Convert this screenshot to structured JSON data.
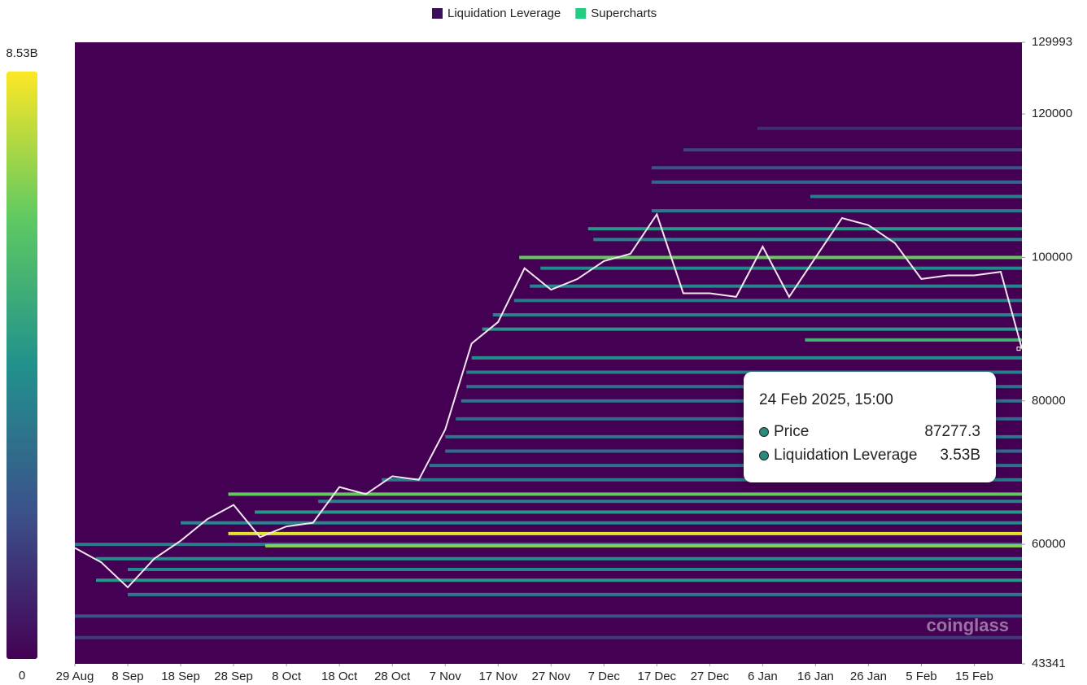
{
  "chart_data": {
    "type": "heatmap",
    "legend": [
      {
        "name": "Liquidation Leverage",
        "color": "#3b0f5a"
      },
      {
        "name": "Supercharts",
        "color": "#22cc80"
      }
    ],
    "ylim": [
      43341,
      129993
    ],
    "yticks": [
      129993,
      120000,
      100000,
      80000,
      60000,
      43341
    ],
    "xlim": [
      "29 Aug",
      "24 Feb"
    ],
    "xticks": [
      "29 Aug",
      "8 Sep",
      "18 Sep",
      "28 Sep",
      "8 Oct",
      "18 Oct",
      "28 Oct",
      "7 Nov",
      "17 Nov",
      "27 Nov",
      "7 Dec",
      "17 Dec",
      "27 Dec",
      "6 Jan",
      "16 Jan",
      "26 Jan",
      "5 Feb",
      "15 Feb"
    ],
    "colorbar": {
      "lim": [
        0,
        8.53
      ],
      "ticks": [
        {
          "value": 8.53,
          "label": "8.53B"
        },
        0
      ]
    },
    "heatmap": {
      "levels": [
        47000,
        50000,
        53000,
        55000,
        56500,
        58000,
        60000,
        59800,
        61500,
        63000,
        64500,
        66000,
        67000,
        69000,
        71000,
        73000,
        75000,
        77500,
        80000,
        82000,
        84000,
        86000,
        88500,
        90000,
        92000,
        94000,
        96000,
        98500,
        100000,
        102500,
        104000,
        106500,
        108500,
        110500,
        112500,
        115000,
        118000
      ],
      "from": [
        "29 Aug",
        "29 Aug",
        "8 Sep",
        "2 Sep",
        "8 Sep",
        "2 Sep",
        "29 Aug",
        "4 Oct",
        "27 Sep",
        "18 Sep",
        "2 Oct",
        "14 Oct",
        "27 Sep",
        "26 Oct",
        "4 Nov",
        "7 Nov",
        "7 Nov",
        "9 Nov",
        "10 Nov",
        "11 Nov",
        "11 Nov",
        "12 Nov",
        "14 Jan",
        "14 Nov",
        "16 Nov",
        "20 Nov",
        "23 Nov",
        "25 Nov",
        "21 Nov",
        "5 Dec",
        "4 Dec",
        "16 Dec",
        "15 Jan",
        "16 Dec",
        "16 Dec",
        "22 Dec",
        "5 Jan"
      ],
      "values": [
        1.5,
        2.2,
        3.5,
        4.5,
        4.0,
        4.2,
        3.5,
        7.0,
        8.2,
        4.0,
        4.5,
        3.8,
        6.5,
        3.5,
        3.2,
        3.0,
        3.4,
        3.0,
        3.3,
        3.1,
        3.6,
        4.2,
        5.5,
        4.5,
        3.8,
        3.5,
        3.8,
        4.0,
        6.5,
        3.8,
        4.5,
        3.5,
        3.6,
        2.8,
        2.2,
        1.8,
        1.2
      ]
    },
    "price": {
      "color": "#f2e6ee",
      "x": [
        "29 Aug",
        "3 Sep",
        "8 Sep",
        "13 Sep",
        "18 Sep",
        "23 Sep",
        "28 Sep",
        "3 Oct",
        "8 Oct",
        "13 Oct",
        "18 Oct",
        "23 Oct",
        "28 Oct",
        "2 Nov",
        "7 Nov",
        "12 Nov",
        "17 Nov",
        "22 Nov",
        "27 Nov",
        "2 Dec",
        "7 Dec",
        "12 Dec",
        "17 Dec",
        "22 Dec",
        "27 Dec",
        "1 Jan",
        "6 Jan",
        "11 Jan",
        "16 Jan",
        "21 Jan",
        "26 Jan",
        "31 Jan",
        "5 Feb",
        "10 Feb",
        "15 Feb",
        "20 Feb",
        "24 Feb"
      ],
      "values": [
        59500,
        57500,
        54000,
        58000,
        60500,
        63500,
        65500,
        61000,
        62500,
        63000,
        68000,
        67000,
        69500,
        69000,
        76000,
        88000,
        91000,
        98500,
        95500,
        97000,
        99500,
        100500,
        106000,
        95000,
        95000,
        94500,
        101500,
        94500,
        100000,
        105500,
        104500,
        102000,
        97000,
        97500,
        97500,
        98000,
        87277.3
      ]
    },
    "tooltip": {
      "title": "24 Feb 2025, 15:00",
      "rows": [
        {
          "label": "Price",
          "value": 87277.3
        },
        {
          "label": "Liquidation Leverage",
          "value": 3.53,
          "value_label": "3.53B"
        }
      ]
    },
    "watermark": "coinglass"
  }
}
